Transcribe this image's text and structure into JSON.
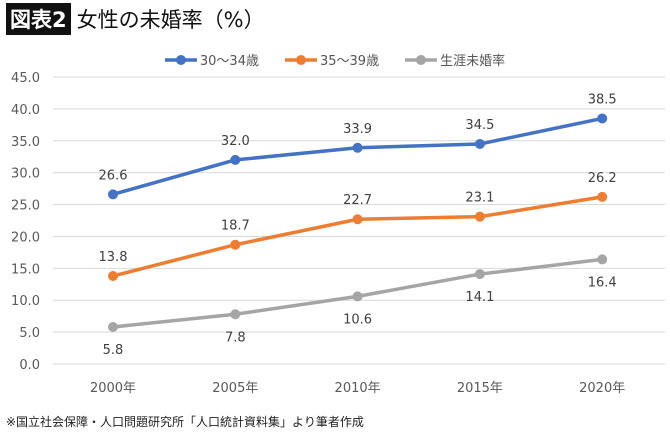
{
  "chart_data": {
    "type": "line",
    "title_badge": "図表2",
    "title": "女性の未婚率（%）",
    "categories": [
      "2000年",
      "2005年",
      "2010年",
      "2015年",
      "2020年"
    ],
    "ylim": [
      0,
      45
    ],
    "yticks": [
      "0.0",
      "5.0",
      "10.0",
      "15.0",
      "20.0",
      "25.0",
      "30.0",
      "35.0",
      "40.0",
      "45.0"
    ],
    "grid": true,
    "legend_position": "top",
    "series": [
      {
        "name": "30〜34歳",
        "color": "#4472C4",
        "values": [
          26.6,
          32.0,
          33.9,
          34.5,
          38.5
        ],
        "labels": [
          "26.6",
          "32.0",
          "33.9",
          "34.5",
          "38.5"
        ],
        "label_pos": "above"
      },
      {
        "name": "35〜39歳",
        "color": "#ED7D31",
        "values": [
          13.8,
          18.7,
          22.7,
          23.1,
          26.2
        ],
        "labels": [
          "13.8",
          "18.7",
          "22.7",
          "23.1",
          "26.2"
        ],
        "label_pos": "above"
      },
      {
        "name": "生涯未婚率",
        "color": "#A5A5A5",
        "values": [
          5.8,
          7.8,
          10.6,
          14.1,
          16.4
        ],
        "labels": [
          "5.8",
          "7.8",
          "10.6",
          "14.1",
          "16.4"
        ],
        "label_pos": "below"
      }
    ],
    "source": "※国立社会保障・人口問題研究所「人口統計資料集」より筆者作成"
  }
}
